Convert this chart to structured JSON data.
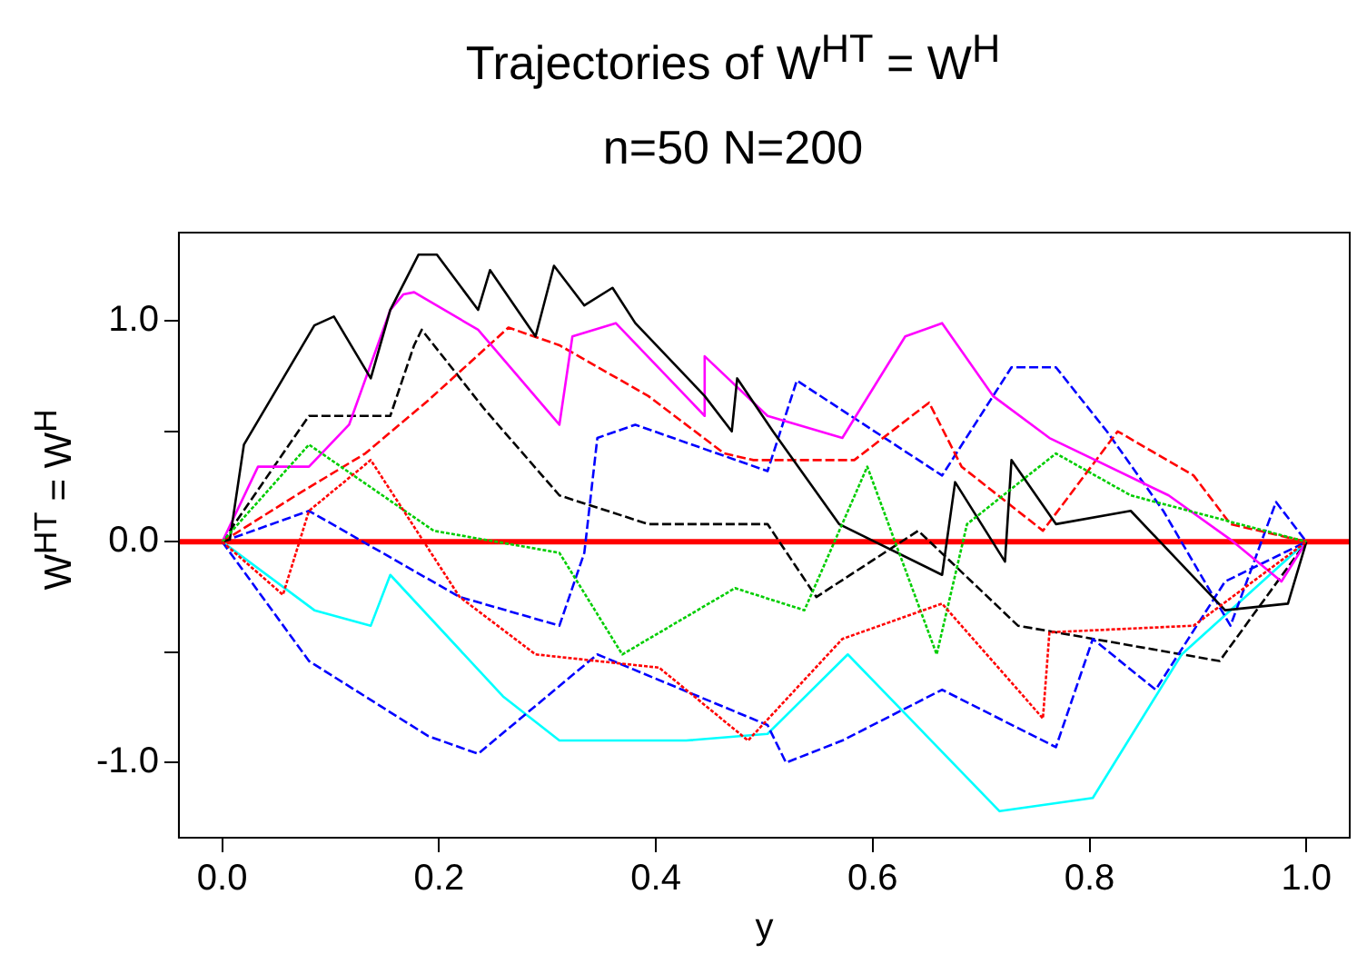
{
  "chart_data": {
    "type": "line",
    "title": "Trajectories of  W$^{HT}$ = W$^{H}$",
    "subtitle": "n=50 N=200",
    "xlabel": "y",
    "ylabel": "W$^{HT}$ = W$^{H}$",
    "xlim": [
      -0.04,
      1.04
    ],
    "ylim": [
      -1.34,
      1.4
    ],
    "xticks": [
      {
        "value": 0,
        "label": "0.0"
      },
      {
        "value": 0.2,
        "label": "0.2"
      },
      {
        "value": 0.4,
        "label": "0.4"
      },
      {
        "value": 0.6,
        "label": "0.6"
      },
      {
        "value": 0.8,
        "label": "0.8"
      },
      {
        "value": 1,
        "label": "1.0"
      }
    ],
    "yticks": [
      {
        "value": -1,
        "label": "-1.0"
      },
      {
        "value": -0.5,
        "label": null
      },
      {
        "value": 0,
        "label": "0.0"
      },
      {
        "value": 0.5,
        "label": null
      },
      {
        "value": 1,
        "label": "1.0"
      }
    ],
    "grid": false,
    "legend": false,
    "marker": "none",
    "series": [
      {
        "color": "#000000",
        "line_style": "solid",
        "x": [
          0,
          0.007,
          0.02,
          0.085,
          0.103,
          0.137,
          0.155,
          0.181,
          0.198,
          0.236,
          0.247,
          0.289,
          0.306,
          0.334,
          0.36,
          0.381,
          0.445,
          0.47,
          0.475,
          0.508,
          0.569,
          0.664,
          0.676,
          0.722,
          0.728,
          0.769,
          0.838,
          0.925,
          0.983,
          1
        ],
        "values": [
          0,
          0.01,
          0.44,
          0.98,
          1.02,
          0.74,
          1.05,
          1.3,
          1.3,
          1.05,
          1.23,
          0.93,
          1.25,
          1.07,
          1.15,
          0.99,
          0.66,
          0.5,
          0.74,
          0.5,
          0.08,
          -0.15,
          0.27,
          -0.09,
          0.37,
          0.08,
          0.14,
          -0.31,
          -0.28,
          0
        ]
      },
      {
        "color": "#ff00ff",
        "line_style": "solid",
        "x": [
          0,
          0.033,
          0.08,
          0.117,
          0.155,
          0.167,
          0.177,
          0.236,
          0.311,
          0.323,
          0.363,
          0.445,
          0.445,
          0.503,
          0.572,
          0.63,
          0.664,
          0.711,
          0.763,
          0.873,
          0.93,
          0.977,
          1
        ],
        "values": [
          0,
          0.34,
          0.34,
          0.53,
          1.05,
          1.12,
          1.13,
          0.96,
          0.53,
          0.93,
          0.99,
          0.57,
          0.84,
          0.57,
          0.47,
          0.93,
          0.99,
          0.66,
          0.47,
          0.21,
          0.01,
          -0.18,
          0
        ]
      },
      {
        "color": "#ff0000",
        "line_style": "dashed",
        "x": [
          0,
          0.068,
          0.132,
          0.19,
          0.264,
          0.311,
          0.393,
          0.463,
          0.49,
          0.583,
          0.652,
          0.682,
          0.757,
          0.826,
          0.896,
          0.93,
          1
        ],
        "values": [
          0,
          0.21,
          0.4,
          0.64,
          0.97,
          0.89,
          0.66,
          0.4,
          0.37,
          0.37,
          0.63,
          0.34,
          0.05,
          0.5,
          0.3,
          0.08,
          0
        ]
      },
      {
        "color": "#ff0000",
        "line_style": "dotted",
        "x": [
          0,
          0.056,
          0.08,
          0.137,
          0.219,
          0.289,
          0.403,
          0.485,
          0.572,
          0.664,
          0.757,
          0.763,
          0.896,
          1
        ],
        "values": [
          0,
          -0.24,
          0.14,
          0.37,
          -0.25,
          -0.51,
          -0.57,
          -0.9,
          -0.44,
          -0.28,
          -0.8,
          -0.41,
          -0.38,
          0
        ]
      },
      {
        "color": "#00cd00",
        "line_style": "dotted",
        "x": [
          0,
          0.08,
          0.195,
          0.311,
          0.369,
          0.473,
          0.537,
          0.595,
          0.659,
          0.687,
          0.769,
          0.838,
          1
        ],
        "values": [
          0,
          0.44,
          0.05,
          -0.05,
          -0.51,
          -0.21,
          -0.31,
          0.34,
          -0.51,
          0.08,
          0.4,
          0.21,
          0
        ]
      },
      {
        "color": "#0000ff",
        "line_style": "dashed",
        "x": [
          0,
          0.08,
          0.219,
          0.311,
          0.334,
          0.346,
          0.381,
          0.503,
          0.53,
          0.664,
          0.728,
          0.769,
          0.816,
          0.868,
          0.93,
          0.972,
          1
        ],
        "values": [
          0,
          0.14,
          -0.25,
          -0.38,
          -0.05,
          0.47,
          0.53,
          0.32,
          0.73,
          0.3,
          0.79,
          0.79,
          0.5,
          0.14,
          -0.38,
          0.18,
          0
        ]
      },
      {
        "color": "#0000ff",
        "line_style": "dashed",
        "x": [
          0,
          0.08,
          0.19,
          0.236,
          0.346,
          0.503,
          0.52,
          0.572,
          0.664,
          0.769,
          0.803,
          0.861,
          0.925,
          1
        ],
        "values": [
          0,
          -0.54,
          -0.88,
          -0.96,
          -0.51,
          -0.83,
          -1.0,
          -0.9,
          -0.67,
          -0.93,
          -0.44,
          -0.67,
          -0.18,
          0
        ]
      },
      {
        "color": "#00ffff",
        "line_style": "solid",
        "x": [
          0,
          0.085,
          0.137,
          0.155,
          0.259,
          0.311,
          0.428,
          0.503,
          0.577,
          0.717,
          0.803,
          0.885,
          1
        ],
        "values": [
          0,
          -0.31,
          -0.38,
          -0.15,
          -0.7,
          -0.9,
          -0.9,
          -0.87,
          -0.51,
          -1.22,
          -1.16,
          -0.51,
          0
        ]
      },
      {
        "color": "#000000",
        "line_style": "dashed",
        "x": [
          0,
          0.08,
          0.155,
          0.177,
          0.184,
          0.242,
          0.311,
          0.393,
          0.503,
          0.548,
          0.642,
          0.734,
          0.92,
          1
        ],
        "values": [
          0,
          0.57,
          0.57,
          0.89,
          0.96,
          0.6,
          0.21,
          0.08,
          0.08,
          -0.25,
          0.05,
          -0.38,
          -0.54,
          0
        ]
      }
    ],
    "ref_lines": [
      {
        "axis": "y",
        "value": 0,
        "color": "#ff0000"
      }
    ]
  }
}
